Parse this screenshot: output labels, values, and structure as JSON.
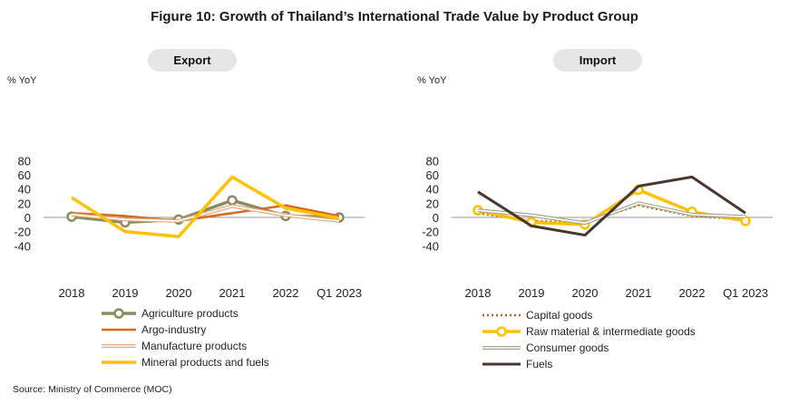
{
  "figure": {
    "title": "Figure 10: Growth of Thailand’s  International Trade Value by Product Group",
    "source": "Source: Ministry of  Commerce (MOC)"
  },
  "chart_data": [
    {
      "type": "line",
      "title": "Export",
      "ylabel": "% YoY",
      "ylim": [
        -40,
        80
      ],
      "yticks": [
        80,
        60,
        40,
        20,
        0,
        -20,
        -40
      ],
      "categories": [
        "2018",
        "2019",
        "2020",
        "2021",
        "2022",
        "Q1 2023"
      ],
      "legend_position": "bottom",
      "series": [
        {
          "name": "Agriculture products",
          "values": [
            1,
            -7,
            -3,
            24,
            2,
            0
          ],
          "color": "#8b8a62",
          "style": "thick-markers"
        },
        {
          "name": "Argo-industry",
          "values": [
            6,
            2,
            -5,
            6,
            17,
            2
          ],
          "color": "#d2691e",
          "style": "solid"
        },
        {
          "name": "Manufacture products",
          "values": [
            4,
            -3,
            -5,
            16,
            3,
            -5
          ],
          "color": "#e0a878",
          "style": "double"
        },
        {
          "name": "Mineral products and fuels",
          "values": [
            28,
            -20,
            -27,
            57,
            13,
            -1
          ],
          "color": "#ffc000",
          "style": "thick"
        }
      ]
    },
    {
      "type": "line",
      "title": "Import",
      "ylabel": "% YoY",
      "ylim": [
        -40,
        80
      ],
      "yticks": [
        80,
        60,
        40,
        20,
        0,
        -20,
        -40
      ],
      "categories": [
        "2018",
        "2019",
        "2020",
        "2021",
        "2022",
        "Q1 2023"
      ],
      "legend_position": "bottom",
      "series": [
        {
          "name": "Capital goods",
          "values": [
            6,
            -5,
            -7,
            17,
            2,
            -3
          ],
          "color": "#c85a1e",
          "style": "dotted"
        },
        {
          "name": "Raw material & intermediate goods",
          "values": [
            10,
            -7,
            -10,
            39,
            8,
            -5
          ],
          "color": "#ffc000",
          "style": "thick-markers"
        },
        {
          "name": "Consumer goods",
          "values": [
            10,
            3,
            -8,
            20,
            4,
            1
          ],
          "color": "#a5a587",
          "style": "double"
        },
        {
          "name": "Fuels",
          "values": [
            36,
            -12,
            -25,
            44,
            57,
            6
          ],
          "color": "#4a3630",
          "style": "solid-thick"
        }
      ]
    }
  ]
}
